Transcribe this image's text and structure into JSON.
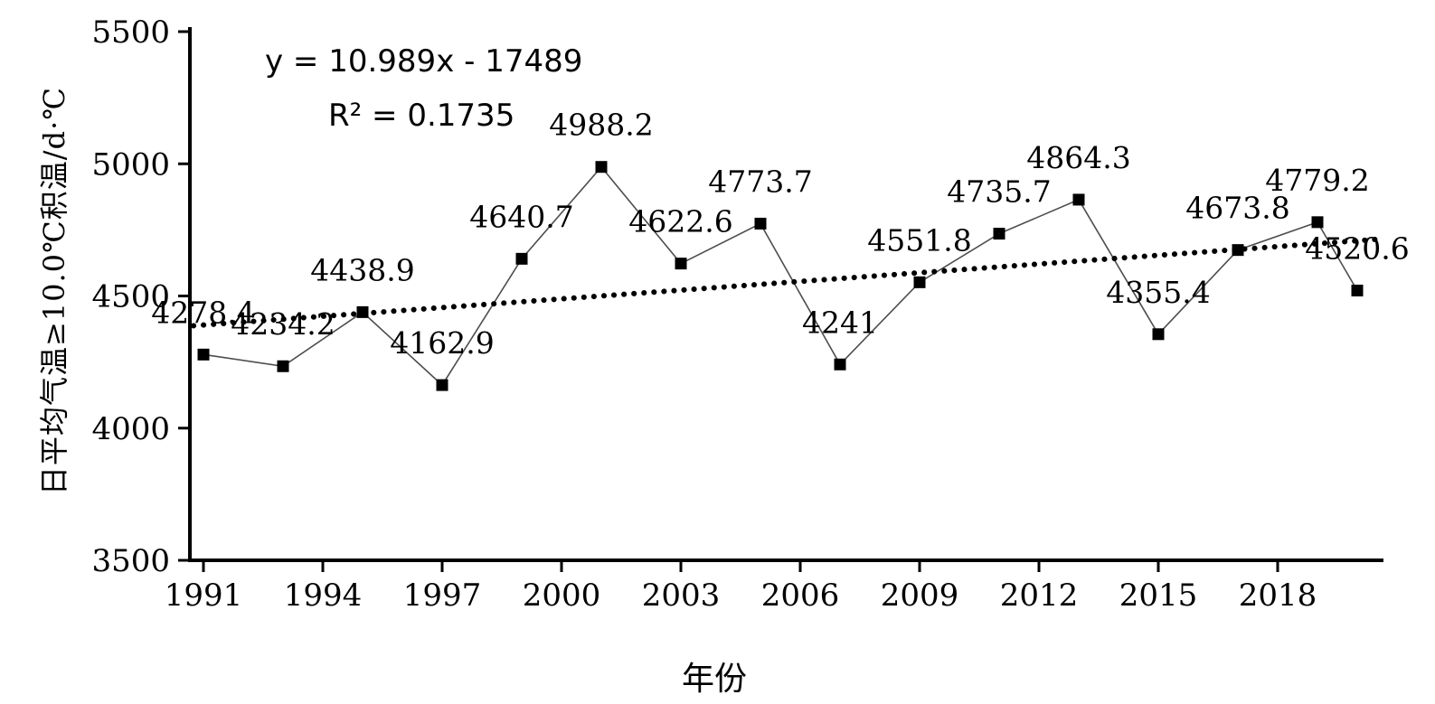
{
  "chart_data": {
    "type": "line",
    "title": "",
    "xlabel": "年份",
    "ylabel": "日平均气温≥10.0℃积温/d·℃",
    "x": [
      1991,
      1993,
      1995,
      1997,
      1999,
      2001,
      2003,
      2005,
      2007,
      2009,
      2011,
      2013,
      2015,
      2017,
      2019,
      2020
    ],
    "values": [
      4278.4,
      4234.2,
      4438.9,
      4162.9,
      4640.7,
      4988.2,
      4622.6,
      4773.7,
      4241,
      4551.8,
      4735.7,
      4864.3,
      4355.4,
      4673.8,
      4779.2,
      4520.6
    ],
    "point_labels": [
      "4278.4",
      "4234.2",
      "4438.9",
      "4162.9",
      "4640.7",
      "4988.2",
      "4622.6",
      "4773.7",
      "4241",
      "4551.8",
      "4735.7",
      "4864.3",
      "4355.4",
      "4673.8",
      "4779.2",
      "4520.6"
    ],
    "xticks": [
      1991,
      1994,
      1997,
      2000,
      2003,
      2006,
      2009,
      2012,
      2015,
      2018
    ],
    "yticks": [
      3500,
      4000,
      4500,
      5000,
      5500
    ],
    "ylim": [
      3500,
      5500
    ],
    "grid": false,
    "legend": "none",
    "trendline": {
      "equation": "y = 10.989x - 17489",
      "r2": "R² = 0.1735",
      "slope": 10.989,
      "intercept": -17489,
      "style": "dotted"
    },
    "colors": {
      "marker": "#000000",
      "series_line": "#4d4d4d",
      "trend_line": "#000000",
      "axis": "#000000",
      "text": "#000000",
      "background": "#ffffff"
    }
  }
}
